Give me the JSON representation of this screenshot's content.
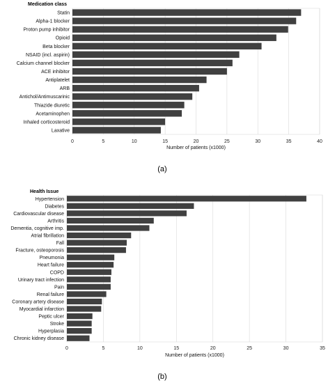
{
  "chart_data": [
    {
      "type": "bar",
      "orientation": "horizontal",
      "header": "Medication class",
      "panel_label": "(a)",
      "xlabel": "Number of patients (x1000)",
      "xlim": [
        0,
        40
      ],
      "xticks": [
        0,
        5,
        10,
        15,
        20,
        25,
        30,
        35,
        40
      ],
      "grid": true,
      "categories": [
        "Statin",
        "Alpha-1 blocker",
        "Proton pump inhibitor",
        "Opioid",
        "Beta blocker",
        "NSAID (incl. aspirin)",
        "Calcium channel blocker",
        "ACE inhibitor",
        "Antiplatelet",
        "ARB",
        "Antichol/Antimuscarinic",
        "Thiazide diuretic",
        "Acetaminophen",
        "Inhaled corticosteroid",
        "Laxative"
      ],
      "values": [
        37.0,
        36.2,
        34.9,
        33.0,
        30.6,
        27.0,
        25.9,
        25.0,
        21.7,
        20.5,
        19.4,
        18.1,
        17.7,
        15.0,
        14.3
      ],
      "color": "#404040"
    },
    {
      "type": "bar",
      "orientation": "horizontal",
      "header": "Health Issue",
      "panel_label": "(b)",
      "xlabel": "Number of patients (x1000)",
      "xlim": [
        0,
        35
      ],
      "xticks": [
        0,
        5,
        10,
        15,
        20,
        25,
        30,
        35
      ],
      "grid": true,
      "categories": [
        "Hypertension",
        "Diabetes",
        "Cardiovascular disease",
        "Arthritis",
        "Dementia, cognitive imp.",
        "Atrial fibrillation",
        "Fall",
        "Fracture, osteoporosis",
        "Pneumonia",
        "Heart failure",
        "COPD",
        "Urinary tract infection",
        "Pain",
        "Renal failure",
        "Coronary artery disease",
        "Myocardial infarction",
        "Peptic ulcer",
        "Stroke",
        "Hyperplasia",
        "Chronic kidney disease"
      ],
      "values": [
        32.8,
        17.4,
        16.4,
        11.9,
        11.3,
        8.8,
        8.2,
        8.1,
        6.5,
        6.4,
        6.1,
        6.0,
        6.0,
        5.4,
        4.8,
        4.7,
        3.5,
        3.4,
        3.4,
        3.1
      ],
      "color": "#404040"
    }
  ]
}
